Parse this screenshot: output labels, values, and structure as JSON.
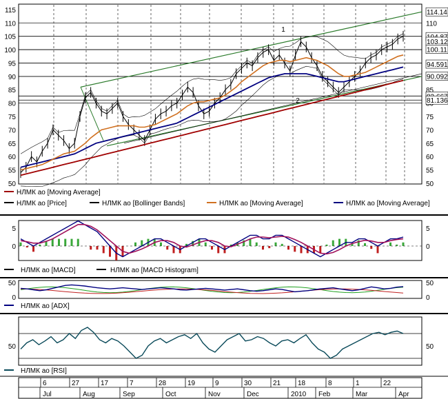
{
  "chart_data": {
    "type": "line",
    "time_axis": {
      "day_ticks": [
        "6",
        "27",
        "17",
        "7",
        "28",
        "19",
        "9",
        "30",
        "21",
        "18",
        "8",
        "1",
        "22"
      ],
      "month_labels": [
        "Jul",
        "Aug",
        "Sep",
        "Oct",
        "Nov",
        "Dec",
        "2010",
        "Feb",
        "Mar",
        "Apr"
      ]
    },
    "panels": [
      {
        "name": "price",
        "ylim": [
          50,
          116
        ],
        "yticks": [
          50,
          55,
          60,
          65,
          70,
          75,
          80,
          85,
          90,
          95,
          100,
          105,
          110,
          115
        ],
        "grid": true,
        "last_value_labels": [
          "114.14",
          "104.87",
          "103.12",
          "100.11",
          "94.591",
          "90.092",
          "82.667",
          "81.136"
        ],
        "annotations": [
          "1",
          "2"
        ],
        "legend": [
          {
            "name": "НЛМК ао [Moving Average]",
            "color": "#a00000"
          },
          {
            "name": "НЛМК ао [Price]",
            "color": "#000000"
          },
          {
            "name": "НЛМК ао [Bollinger Bands]",
            "color": "#000000"
          },
          {
            "name": "НЛМК ао [Moving Average]",
            "color": "#d07020"
          },
          {
            "name": "НЛМК ао [Moving Average]",
            "color": "#000080"
          }
        ],
        "series": [
          {
            "name": "НЛМК ао [Price]",
            "color": "#000000",
            "values": [
              54,
              56,
              60,
              58,
              62,
              65,
              70,
              68,
              66,
              63,
              65,
              75,
              82,
              84,
              80,
              77,
              76,
              78,
              80,
              75,
              72,
              70,
              68,
              66,
              70,
              74,
              76,
              77,
              79,
              80,
              83,
              86,
              84,
              79,
              76,
              77,
              80,
              82,
              85,
              87,
              91,
              93,
              95,
              94,
              97,
              99,
              100,
              96,
              98,
              95,
              92,
              98,
              103,
              101,
              97,
              94,
              90,
              88,
              86,
              84,
              86,
              88,
              90,
              92,
              95,
              97,
              98,
              100,
              101,
              102,
              104,
              105
            ]
          },
          {
            "name": "НЛМК ао [Moving Average]",
            "note": "orange",
            "color": "#d07020",
            "values": [
              55,
              55.5,
              56,
              56.5,
              57,
              58,
              59,
              60,
              61,
              61.5,
              62,
              63.5,
              65,
              67,
              68.5,
              70,
              70.5,
              71,
              71.5,
              71.5,
              71.5,
              71.5,
              71,
              71,
              71.5,
              72,
              73,
              74,
              75,
              76,
              77.5,
              79,
              80,
              80.5,
              80.5,
              81,
              81.5,
              82,
              83,
              84.5,
              86,
              88,
              89.5,
              91,
              92.5,
              94,
              95,
              95.5,
              96,
              96,
              95.5,
              96,
              96.5,
              97,
              96.5,
              96,
              95,
              94,
              92.5,
              91,
              90,
              90,
              90.5,
              91,
              91.5,
              92.5,
              93.5,
              94.5,
              95.5,
              96.5,
              97.5,
              98
            ]
          },
          {
            "name": "НЛМК ао [Moving Average]",
            "note": "blue",
            "color": "#000080",
            "values": [
              56,
              56.5,
              57,
              57.5,
              58,
              58.5,
              59,
              59.5,
              60,
              60.5,
              61,
              62,
              63,
              64,
              65,
              65.5,
              66,
              66.5,
              67,
              67.5,
              68,
              68.5,
              69,
              69.5,
              70,
              70.5,
              71,
              71.5,
              72,
              72.5,
              73.5,
              74.5,
              75.5,
              76.5,
              77.5,
              78.5,
              79.5,
              80.5,
              81.5,
              82.5,
              83.5,
              84.5,
              85.5,
              86.5,
              87.5,
              88.5,
              89.5,
              90,
              90.5,
              91,
              91,
              91,
              91,
              91,
              90.5,
              90,
              89.5,
              89,
              88.5,
              88,
              88,
              88.5,
              89,
              89.5,
              90,
              90.5,
              91,
              91.5,
              92,
              92.5,
              93,
              93.5
            ]
          },
          {
            "name": "НЛМК ао [Moving Average]",
            "note": "red",
            "color": "#a00000",
            "values": [
              53,
              53.5,
              54,
              54.5,
              55,
              55.5,
              56,
              56.5,
              57,
              57.5,
              58,
              58.5,
              59,
              59.5,
              60,
              60.5,
              61,
              61.5,
              62,
              62.5,
              63,
              63.5,
              64,
              64.5,
              65,
              65.5,
              66,
              66.5,
              67,
              67.5,
              68,
              68.5,
              69,
              69.5,
              70,
              70.5,
              71,
              71.5,
              72,
              72.5,
              73,
              73.5,
              74,
              74.5,
              75,
              75.5,
              76,
              76.5,
              77,
              77.5,
              78,
              78.5,
              79,
              79.5,
              80,
              80.5,
              81,
              81.5,
              82,
              82.5,
              83,
              83.5,
              84,
              84.5,
              85,
              85.5,
              86,
              86.5,
              87,
              87.5,
              88,
              88.5
            ]
          }
        ]
      },
      {
        "name": "macd",
        "yticks": [
          5,
          0
        ],
        "legend": [
          {
            "name": "НЛМК ао [MACD]",
            "color": "#000000"
          },
          {
            "name": "НЛМК ао [MACD Histogram]",
            "color": "#000000"
          }
        ],
        "series": [
          {
            "name": "НЛМК ао [MACD]",
            "color": "#000080",
            "values": [
              2,
              1,
              0,
              1,
              2,
              3,
              4,
              5,
              6,
              7,
              6,
              5,
              4,
              2,
              0,
              -2,
              -3,
              -2,
              -1,
              0,
              1,
              2,
              2,
              1,
              0,
              -1,
              0,
              1,
              2,
              2,
              1,
              0,
              -1,
              0,
              1,
              2,
              3,
              3,
              2,
              2,
              3,
              3,
              2,
              1,
              0,
              -1,
              -2,
              -3,
              -2,
              -1,
              0,
              1,
              1,
              2,
              2,
              1,
              0,
              1,
              2,
              2,
              2.5
            ]
          },
          {
            "name": "signal",
            "color": "#a0105a",
            "values": [
              1.5,
              1.2,
              0.8,
              0.8,
              1.3,
              2,
              3,
              4,
              5,
              6,
              6,
              5.5,
              4.5,
              3,
              1.5,
              0,
              -1.5,
              -2,
              -1.5,
              -0.8,
              0,
              1,
              1.5,
              1.5,
              1,
              0,
              -0.3,
              0.3,
              1,
              1.5,
              1.5,
              1,
              0,
              -0.2,
              0.5,
              1.2,
              2,
              2.5,
              2.5,
              2.3,
              2.5,
              2.7,
              2.5,
              1.8,
              1,
              0,
              -1,
              -2,
              -2.2,
              -1.8,
              -1,
              0,
              0.7,
              1.2,
              1.6,
              1.4,
              1,
              1,
              1.5,
              1.8,
              2
            ]
          }
        ]
      },
      {
        "name": "adx",
        "yticks": [
          50,
          0
        ],
        "legend": [
          {
            "name": "НЛМК ао [ADX]",
            "color": "#000080"
          }
        ],
        "series": [
          {
            "name": "НЛМК ао [ADX]",
            "color": "#000080",
            "values": [
              30,
              28,
              25,
              22,
              25,
              30,
              35,
              40,
              42,
              40,
              38,
              35,
              32,
              30,
              28,
              30,
              32,
              30,
              28,
              26,
              28,
              30,
              32,
              30,
              28,
              25,
              24,
              26,
              28,
              30,
              28,
              26,
              24,
              26,
              28,
              25,
              22,
              20,
              22,
              25,
              28,
              26,
              22,
              18,
              20,
              22,
              25,
              28,
              30,
              32,
              28,
              25,
              22,
              25,
              30,
              35,
              32,
              28,
              30,
              34,
              36
            ]
          }
        ]
      },
      {
        "name": "rsi",
        "yticks": [
          50
        ],
        "legend": [
          {
            "name": "НЛМК ао [RSI]",
            "color": "#0a4a5a"
          }
        ],
        "series": [
          {
            "name": "НЛМК ао [RSI]",
            "color": "#0a4a5a",
            "values": [
              45,
              55,
              60,
              52,
              58,
              65,
              55,
              60,
              70,
              62,
              75,
              80,
              72,
              60,
              55,
              62,
              58,
              50,
              40,
              30,
              35,
              50,
              58,
              62,
              55,
              60,
              65,
              68,
              62,
              70,
              55,
              45,
              40,
              50,
              60,
              65,
              70,
              58,
              60,
              65,
              62,
              55,
              50,
              58,
              60,
              55,
              62,
              68,
              55,
              45,
              40,
              30,
              35,
              45,
              50,
              55,
              60,
              65,
              70,
              72,
              68,
              72,
              74,
              70
            ]
          }
        ]
      }
    ]
  }
}
